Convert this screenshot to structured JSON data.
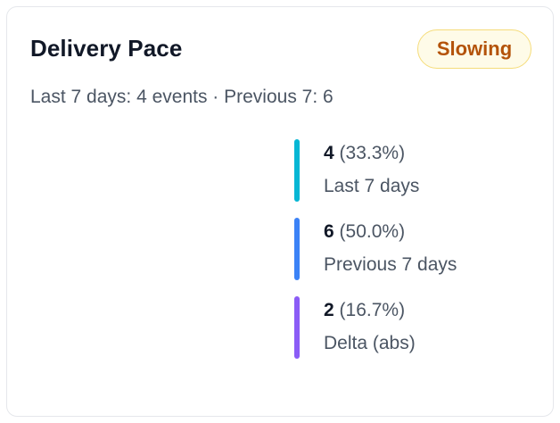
{
  "card": {
    "title": "Delivery Pace",
    "status_badge": "Slowing",
    "subtitle": "Last 7 days: 4 events · Previous 7: 6"
  },
  "legend": [
    {
      "count": "4",
      "percent": "(33.3%)",
      "label": "Last 7 days",
      "color": "#06b6d4"
    },
    {
      "count": "6",
      "percent": "(50.0%)",
      "label": "Previous 7 days",
      "color": "#3b82f6"
    },
    {
      "count": "2",
      "percent": "(16.7%)",
      "label": "Delta (abs)",
      "color": "#8b5cf6"
    }
  ],
  "colors": {
    "badge_text": "#b45309",
    "badge_bg": "#fefbe8",
    "badge_border": "#f5dc7a"
  }
}
